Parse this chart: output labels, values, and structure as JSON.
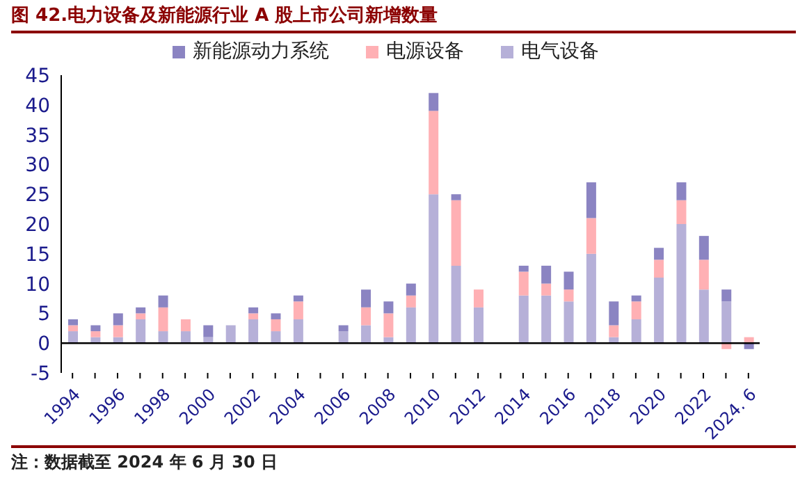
{
  "chart_data": {
    "type": "bar",
    "title": "图 42.电力设备及新能源行业 A 股上市公司新增数量",
    "stacked": true,
    "legend": "top",
    "categories": [
      "1994",
      null,
      "1996",
      null,
      "1998",
      null,
      "2000",
      null,
      "2002",
      null,
      "2004",
      null,
      "2006",
      null,
      "2008",
      null,
      "2010",
      null,
      "2012",
      null,
      "2014",
      null,
      "2016",
      null,
      "2018",
      null,
      "2020",
      null,
      "2022",
      null,
      "2024. 6"
    ],
    "series": [
      {
        "name": "电气设备",
        "color": "#b6b0d8",
        "values": [
          2,
          1,
          1,
          4,
          2,
          2,
          1,
          3,
          4,
          2,
          4,
          0,
          2,
          3,
          1,
          6,
          25,
          13,
          6,
          0,
          8,
          8,
          7,
          15,
          1,
          4,
          11,
          20,
          9,
          7,
          0
        ]
      },
      {
        "name": "电源设备",
        "color": "#ffb0b4",
        "values": [
          1,
          1,
          2,
          1,
          4,
          2,
          0,
          0,
          1,
          2,
          3,
          0,
          0,
          3,
          4,
          2,
          14,
          11,
          3,
          0,
          4,
          2,
          2,
          6,
          2,
          3,
          3,
          4,
          5,
          -1,
          1
        ]
      },
      {
        "name": "新能源动力系统",
        "color": "#8b84c2",
        "values": [
          1,
          1,
          2,
          1,
          2,
          0,
          2,
          0,
          1,
          1,
          1,
          0,
          1,
          3,
          2,
          2,
          3,
          1,
          0,
          0,
          1,
          3,
          3,
          6,
          4,
          1,
          2,
          3,
          4,
          2,
          -1
        ]
      }
    ],
    "ylim": [
      -5,
      45
    ],
    "yticks": [
      -5,
      0,
      5,
      10,
      15,
      20,
      25,
      30,
      35,
      40,
      45
    ],
    "annotations": [
      "注：数据截至 2024 年 6 月 30 日"
    ]
  }
}
